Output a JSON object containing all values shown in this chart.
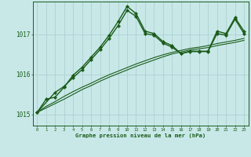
{
  "title": "Graphe pression niveau de la mer (hPa)",
  "bg_color": "#c8e8e8",
  "line_color": "#1a5c1a",
  "grid_color": "#a8cccc",
  "x_ticks": [
    0,
    1,
    2,
    3,
    4,
    5,
    6,
    7,
    8,
    9,
    10,
    11,
    12,
    13,
    14,
    15,
    16,
    17,
    18,
    19,
    20,
    21,
    22,
    23
  ],
  "y_ticks": [
    1015,
    1016,
    1017
  ],
  "ylim": [
    1014.72,
    1017.82
  ],
  "xlim": [
    -0.5,
    23.5
  ],
  "series": [
    {
      "x": [
        0,
        1,
        2,
        3,
        4,
        5,
        6,
        7,
        8,
        9,
        10,
        11,
        12,
        13,
        14,
        15,
        16,
        17,
        18,
        19,
        20,
        21,
        22,
        23
      ],
      "y": [
        1015.05,
        1015.38,
        1015.43,
        1015.68,
        1015.98,
        1016.18,
        1016.43,
        1016.68,
        1016.98,
        1017.32,
        1017.7,
        1017.52,
        1017.08,
        1017.02,
        1016.82,
        1016.72,
        1016.52,
        1016.58,
        1016.58,
        1016.58,
        1017.08,
        1017.02,
        1017.42,
        1017.08
      ],
      "marker": "D",
      "markersize": 2.2,
      "linewidth": 1.0
    },
    {
      "x": [
        0,
        1,
        2,
        3,
        4,
        5,
        6,
        7,
        8,
        9,
        10,
        11,
        12,
        13,
        14,
        15,
        16,
        17,
        18,
        19,
        20,
        21,
        22,
        23
      ],
      "y": [
        1015.05,
        1015.16,
        1015.27,
        1015.38,
        1015.5,
        1015.62,
        1015.72,
        1015.83,
        1015.93,
        1016.02,
        1016.11,
        1016.2,
        1016.28,
        1016.36,
        1016.44,
        1016.51,
        1016.56,
        1016.61,
        1016.64,
        1016.67,
        1016.72,
        1016.76,
        1016.8,
        1016.85
      ],
      "marker": null,
      "markersize": 0,
      "linewidth": 0.8
    },
    {
      "x": [
        0,
        1,
        2,
        3,
        4,
        5,
        6,
        7,
        8,
        9,
        10,
        11,
        12,
        13,
        14,
        15,
        16,
        17,
        18,
        19,
        20,
        21,
        22,
        23
      ],
      "y": [
        1015.05,
        1015.2,
        1015.32,
        1015.45,
        1015.57,
        1015.68,
        1015.78,
        1015.89,
        1015.99,
        1016.08,
        1016.17,
        1016.26,
        1016.34,
        1016.42,
        1016.49,
        1016.55,
        1016.6,
        1016.65,
        1016.68,
        1016.72,
        1016.77,
        1016.81,
        1016.85,
        1016.9
      ],
      "marker": null,
      "markersize": 0,
      "linewidth": 0.8
    },
    {
      "x": [
        0,
        2,
        3,
        4,
        5,
        6,
        7,
        8,
        9,
        10,
        11,
        12,
        13,
        14,
        15,
        16,
        17,
        18,
        19,
        20,
        21,
        22,
        23
      ],
      "y": [
        1015.05,
        1015.55,
        1015.7,
        1015.92,
        1016.12,
        1016.37,
        1016.62,
        1016.9,
        1017.22,
        1017.6,
        1017.45,
        1017.02,
        1016.98,
        1016.78,
        1016.68,
        1016.52,
        1016.57,
        1016.57,
        1016.57,
        1017.02,
        1016.98,
        1017.38,
        1017.02
      ],
      "marker": "D",
      "markersize": 2.2,
      "linewidth": 1.0
    }
  ]
}
